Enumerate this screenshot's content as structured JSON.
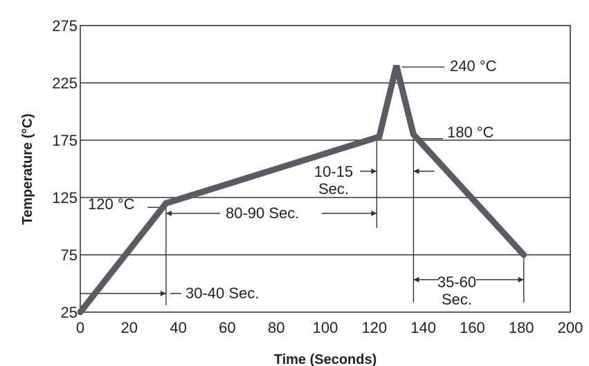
{
  "chart_data": {
    "type": "line",
    "xlabel": "Time (Seconds)",
    "ylabel": "Temperature (°C)",
    "xlim": [
      0,
      200
    ],
    "ylim": [
      25,
      275
    ],
    "x_ticks": [
      "0",
      "20",
      "40",
      "60",
      "80",
      "100",
      "120",
      "140",
      "160",
      "180",
      "200"
    ],
    "y_ticks": [
      "25",
      "75",
      "125",
      "175",
      "225",
      "275"
    ],
    "grid": "horizontal",
    "series": [
      {
        "points": [
          {
            "x": 0,
            "y": 25
          },
          {
            "x": 35,
            "y": 120
          },
          {
            "x": 122,
            "y": 178
          },
          {
            "x": 129,
            "y": 240
          },
          {
            "x": 136,
            "y": 180
          },
          {
            "x": 181,
            "y": 75
          }
        ]
      }
    ],
    "annotations": {
      "peak": "240 °C",
      "second_temp": "180 °C",
      "first_temp": "120 °C",
      "preheat_duration": "30-40 Sec.",
      "soak_duration": "80-90 Sec.",
      "ramp_duration_line1": "10-15",
      "ramp_duration_line2": "Sec.",
      "cool_duration_line1": "35-60",
      "cool_duration_line2": "Sec."
    }
  }
}
